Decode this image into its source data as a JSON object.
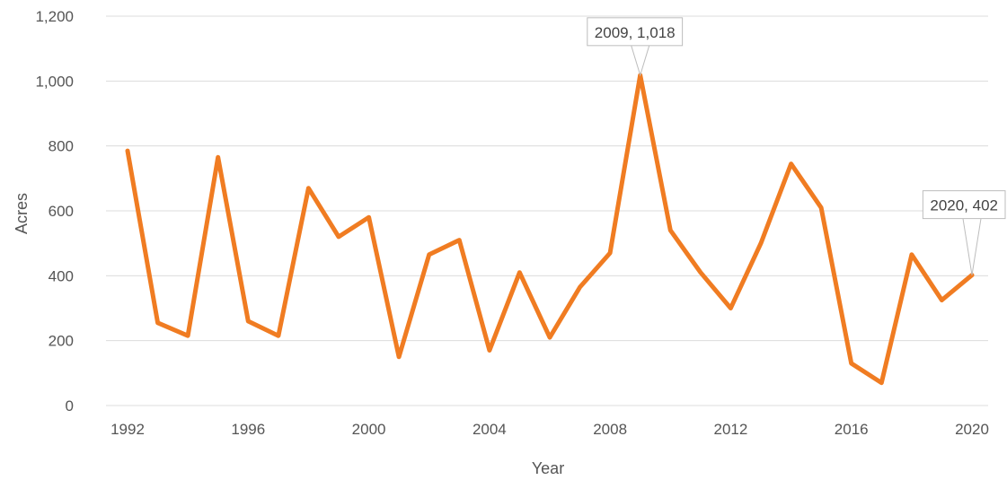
{
  "chart_data": {
    "type": "line",
    "xlabel": "Year",
    "ylabel": "Acres",
    "ylim": [
      0,
      1200
    ],
    "xlim": [
      1992,
      2020
    ],
    "grid": true,
    "line_color": "#f07c22",
    "y_ticks": [
      "0",
      "200",
      "400",
      "600",
      "800",
      "1,000",
      "1,200"
    ],
    "x_ticks": [
      "1992",
      "1996",
      "2000",
      "2004",
      "2008",
      "2012",
      "2016",
      "2020"
    ],
    "series": [
      {
        "x": [
          1992,
          1993,
          1994,
          1995,
          1996,
          1997,
          1998,
          1999,
          2000,
          2001,
          2002,
          2003,
          2004,
          2005,
          2006,
          2007,
          2008,
          2009,
          2010,
          2011,
          2012,
          2013,
          2014,
          2015,
          2016,
          2017,
          2018,
          2019,
          2020
        ],
        "values": [
          785,
          255,
          215,
          765,
          260,
          215,
          670,
          520,
          580,
          150,
          465,
          510,
          170,
          410,
          210,
          365,
          470,
          1018,
          540,
          410,
          300,
          500,
          745,
          610,
          130,
          70,
          465,
          325,
          402
        ]
      }
    ],
    "annotations": [
      {
        "x": 2009,
        "y": 1018,
        "text": "2009, 1,018"
      },
      {
        "x": 2020,
        "y": 402,
        "text": "2020, 402"
      }
    ]
  }
}
